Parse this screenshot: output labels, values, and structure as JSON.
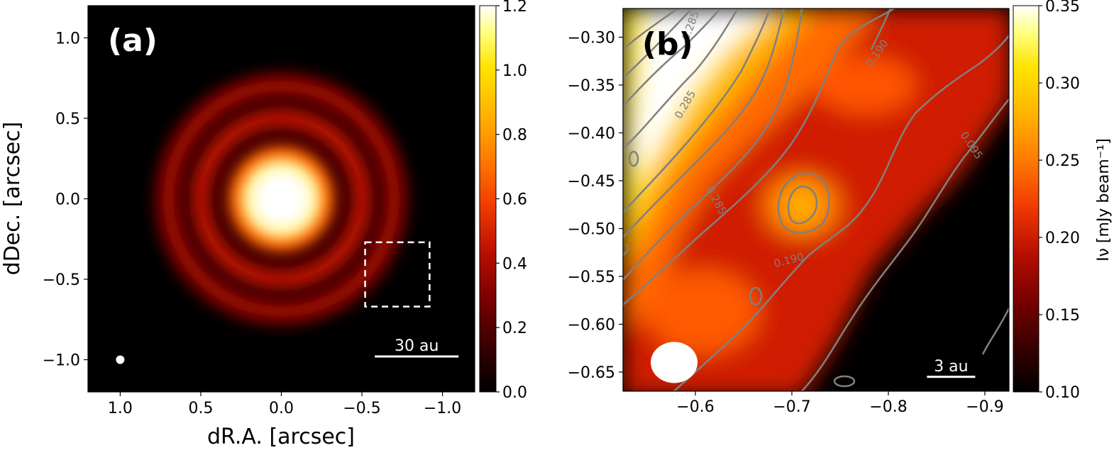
{
  "colors": {
    "colormap": [
      "#000000",
      "#3a0000",
      "#7a0000",
      "#b80f00",
      "#f03a00",
      "#ff7a00",
      "#ffb400",
      "#ffe300",
      "#ffff80",
      "#ffffff"
    ],
    "contour": "#808080",
    "frame": "#000000",
    "overlay": "#ffffff"
  },
  "chart_data": [
    {
      "type": "heatmap",
      "panel_label": "(a)",
      "xlabel": "dR.A. [arcsec]",
      "ylabel": "dDec. [arcsec]",
      "xlim": [
        1.2,
        -1.2
      ],
      "ylim": [
        -1.2,
        1.2
      ],
      "x_ticks": [
        1.0,
        0.5,
        0.0,
        -0.5,
        -1.0
      ],
      "x_tick_labels": [
        "1.0",
        "0.5",
        "0.0",
        "−0.5",
        "−1.0"
      ],
      "y_ticks": [
        1.0,
        0.5,
        0.0,
        -0.5,
        -1.0
      ],
      "y_tick_labels": [
        "1.0",
        "0.5",
        "0.0",
        "−0.5",
        "−1.0"
      ],
      "colorbar": {
        "range": [
          0.0,
          1.2
        ],
        "ticks": [
          0.0,
          0.2,
          0.4,
          0.6,
          0.8,
          1.0,
          1.2
        ],
        "tick_labels": [
          "0.0",
          "0.2",
          "0.4",
          "0.6",
          "0.8",
          "1.0",
          "1.2"
        ],
        "label": ""
      },
      "scale_bar": {
        "label": "30 au",
        "x_start": -0.58,
        "x_end": -1.1,
        "y": -0.98
      },
      "beam": {
        "x": 1.0,
        "y": -1.0
      },
      "inset_box": {
        "x": [
          -0.52,
          -0.92
        ],
        "y": [
          -0.27,
          -0.67
        ]
      },
      "features": {
        "core": {
          "radius": 0.26,
          "peak": 1.2
        },
        "rings": [
          {
            "radius": 0.5,
            "value": 0.5
          },
          {
            "radius": 0.7,
            "value": 0.42
          }
        ]
      }
    },
    {
      "type": "heatmap",
      "panel_label": "(b)",
      "xlabel": "",
      "ylabel": "",
      "xlim": [
        -0.525,
        -0.925
      ],
      "ylim": [
        -0.67,
        -0.27
      ],
      "x_ticks": [
        -0.6,
        -0.7,
        -0.8,
        -0.9
      ],
      "x_tick_labels": [
        "−0.6",
        "−0.7",
        "−0.8",
        "−0.9"
      ],
      "y_ticks": [
        -0.3,
        -0.35,
        -0.4,
        -0.45,
        -0.5,
        -0.55,
        -0.6,
        -0.65
      ],
      "y_tick_labels": [
        "−0.30",
        "−0.35",
        "−0.40",
        "−0.45",
        "−0.50",
        "−0.55",
        "−0.60",
        "−0.65"
      ],
      "colorbar": {
        "range": [
          0.1,
          0.35
        ],
        "ticks": [
          0.1,
          0.15,
          0.2,
          0.25,
          0.3,
          0.35
        ],
        "tick_labels": [
          "0.10",
          "0.15",
          "0.20",
          "0.25",
          "0.30",
          "0.35"
        ],
        "label": "Iν [mJy beam⁻¹]"
      },
      "contour_labels": [
        "0.285",
        "0.285",
        "0.285",
        "0.190",
        "0.190",
        "0.095"
      ],
      "scale_bar": {
        "label": "3 au",
        "x_start": -0.84,
        "x_end": -0.89,
        "y": -0.655
      },
      "beam": {
        "x": -0.578,
        "y": -0.64
      }
    }
  ]
}
